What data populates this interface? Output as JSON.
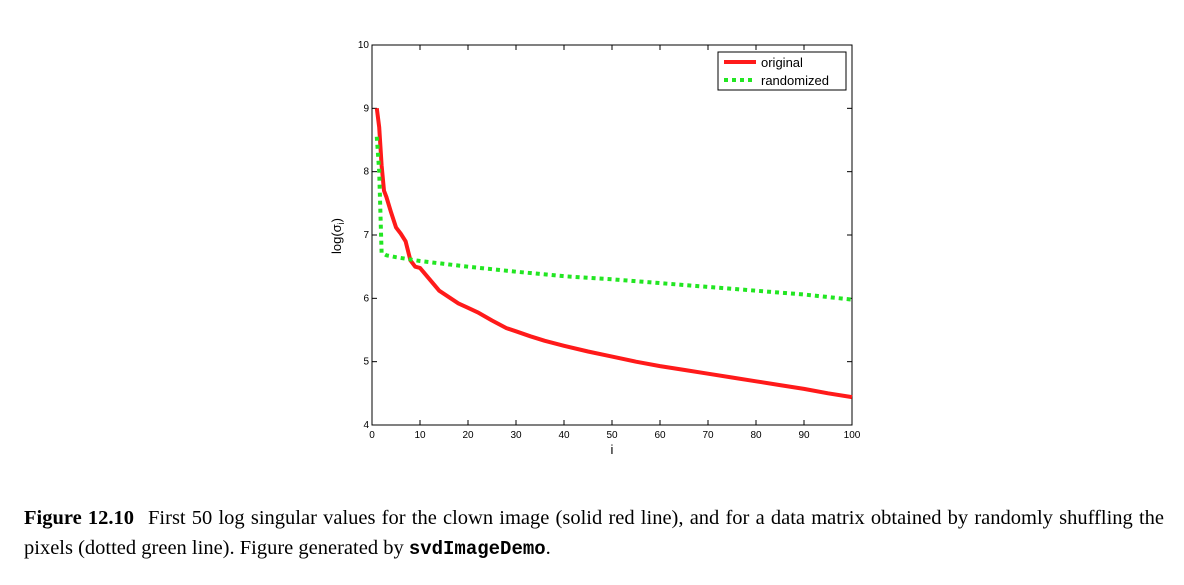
{
  "caption": {
    "label": "Figure 12.10",
    "text_before_code": "First 50 log singular values for the clown image (solid red line), and for a data matrix obtained by randomly shuffling the pixels (dotted green line). Figure generated by ",
    "code": "svdImageDemo",
    "text_after_code": "."
  },
  "chart_data": {
    "type": "line",
    "title": "",
    "xlabel": "i",
    "ylabel": "log(σ",
    "ylabel_subscript": "i",
    "ylabel_close": ")",
    "xlim": [
      0,
      100
    ],
    "ylim": [
      4,
      10
    ],
    "xticks": [
      0,
      10,
      20,
      30,
      40,
      50,
      60,
      70,
      80,
      90,
      100
    ],
    "yticks": [
      4,
      5,
      6,
      7,
      8,
      9,
      10
    ],
    "grid": false,
    "legend_position": "top-right",
    "series": [
      {
        "name": "original",
        "color": "#ff1a1a",
        "style": "solid",
        "x": [
          1,
          1.5,
          2,
          2.5,
          3,
          4,
          5,
          6,
          7,
          8,
          9,
          10,
          12,
          14,
          16,
          18,
          20,
          22,
          25,
          28,
          30,
          33,
          36,
          40,
          45,
          50,
          55,
          60,
          65,
          70,
          75,
          80,
          85,
          90,
          95,
          100
        ],
        "y": [
          9.0,
          8.7,
          8.1,
          7.7,
          7.6,
          7.35,
          7.12,
          7.02,
          6.9,
          6.6,
          6.5,
          6.48,
          6.3,
          6.12,
          6.02,
          5.92,
          5.85,
          5.78,
          5.65,
          5.53,
          5.48,
          5.4,
          5.33,
          5.25,
          5.16,
          5.08,
          5.0,
          4.93,
          4.87,
          4.81,
          4.75,
          4.69,
          4.63,
          4.57,
          4.5,
          4.44
        ]
      },
      {
        "name": "randomized",
        "color": "#22e622",
        "style": "dotted",
        "x": [
          1,
          1.5,
          2,
          3,
          5,
          10,
          20,
          30,
          40,
          50,
          60,
          70,
          80,
          90,
          100
        ],
        "y": [
          8.55,
          8.0,
          6.72,
          6.68,
          6.65,
          6.59,
          6.5,
          6.42,
          6.35,
          6.3,
          6.24,
          6.18,
          6.12,
          6.06,
          5.98
        ]
      }
    ]
  }
}
